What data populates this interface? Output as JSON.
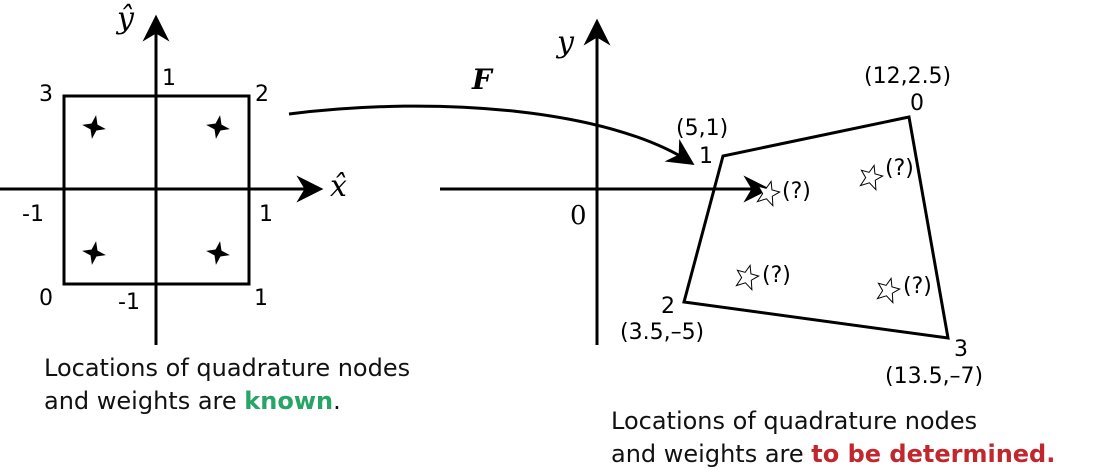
{
  "left": {
    "axis_x": "x̂",
    "axis_y": "ŷ",
    "tick_y_pos": "1",
    "tick_y_neg": "-1",
    "tick_x_pos": "1",
    "tick_x_neg": "-1",
    "corner_3": "3",
    "corner_2": "2",
    "corner_0": "0",
    "corner_1": "1"
  },
  "map_label": "F",
  "right": {
    "axis_y": "y",
    "origin": "0",
    "v0_coord": "(12,2.5)",
    "v0_idx": "0",
    "v1_coord": "(5,1)",
    "v1_idx": "1",
    "v2_coord": "(3.5,–5)",
    "v2_idx": "2",
    "v3_coord": "(13.5,–7)",
    "v3_idx": "3",
    "unknown": "(?)"
  },
  "caption_left": {
    "line1": "Locations of quadrature nodes",
    "line2_pre": "and weights are ",
    "line2_em": "known",
    "line2_post": "."
  },
  "caption_right": {
    "line1": "Locations of quadrature nodes",
    "line2_pre": "and weights are ",
    "line2_em": "to be determined."
  },
  "colors": {
    "known": "#27a566",
    "tbd": "#c0282e"
  }
}
